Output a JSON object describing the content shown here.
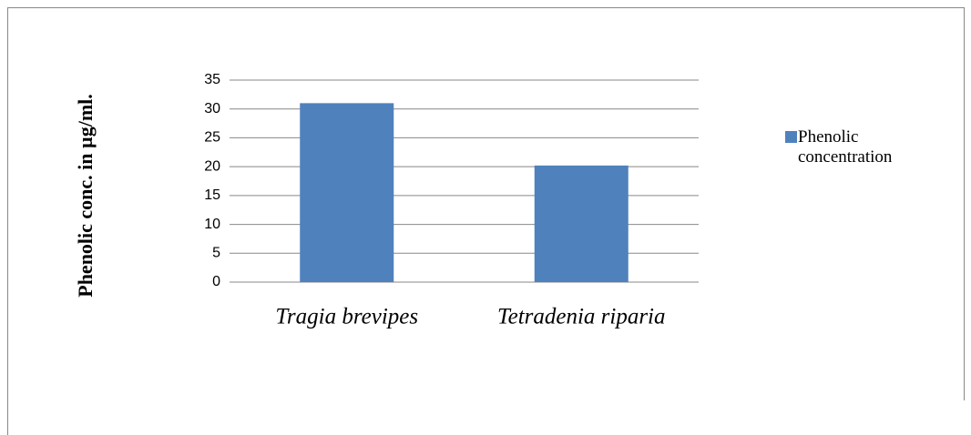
{
  "chart_data": {
    "type": "bar",
    "y_axis_label": "Phenolic conc. in µg/ml.",
    "categories": [
      "Tragia brevipes",
      "Tetradenia riparia"
    ],
    "series": [
      {
        "name": "Phenolic concentration",
        "color": "#4f81bd",
        "values": [
          31,
          20.2
        ]
      }
    ],
    "ylim": [
      0,
      35
    ],
    "yticks": [
      0,
      5,
      10,
      15,
      20,
      25,
      30,
      35
    ],
    "grid": true,
    "legend": "right"
  }
}
